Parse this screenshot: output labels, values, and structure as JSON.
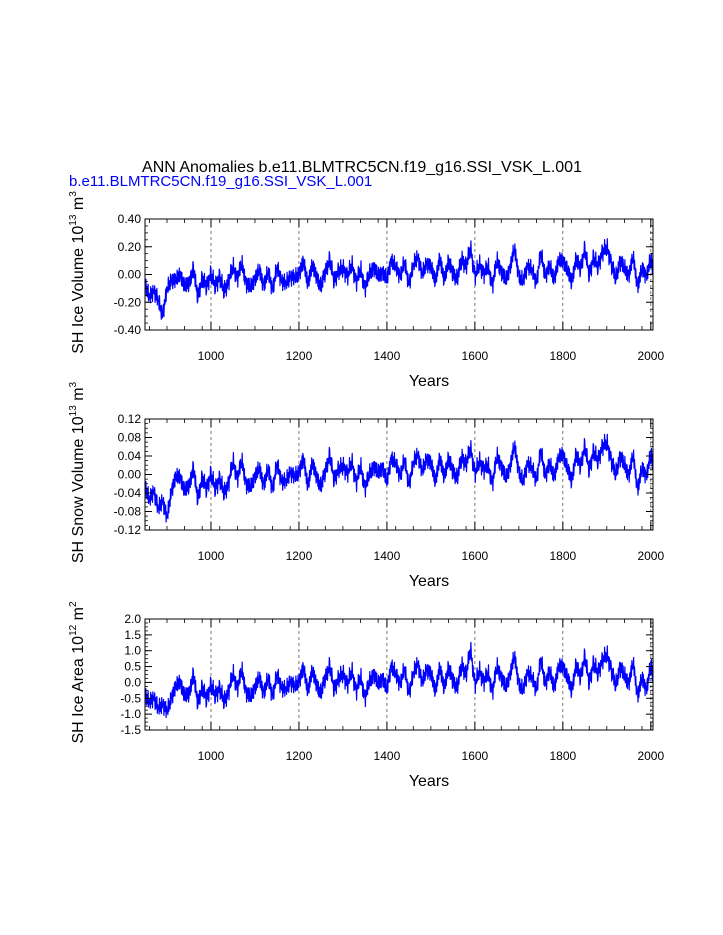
{
  "figure": {
    "title": "ANN Anomalies b.e11.BLMTRC5CN.f19_g16.SSI_VSK_L.001",
    "subtitle": "b.e11.BLMTRC5CN.f19_g16.SSI_VSK_L.001",
    "line_color": "#0000ff",
    "subtitle_color": "#0000ff"
  },
  "chart_data": [
    {
      "type": "line",
      "ylabel": {
        "text": "SH Ice Volume 10",
        "exp": "13",
        "unit": " m",
        "unit_exp": "3"
      },
      "xlabel": "Years",
      "xlim": [
        850,
        2005
      ],
      "ylim": [
        -0.4,
        0.4
      ],
      "xticks": [
        1000,
        1200,
        1400,
        1600,
        1800,
        2000
      ],
      "xtick_labels": [
        "1000",
        "1200",
        "1400",
        "1600",
        "1800",
        "2000"
      ],
      "yticks": [
        -0.4,
        -0.2,
        0.0,
        0.2,
        0.4
      ],
      "ytick_labels": [
        "-0.40",
        "-0.20",
        "0.00",
        "0.20",
        "0.40"
      ],
      "series": [
        {
          "x": [
            850,
            860,
            870,
            880,
            890,
            900,
            910,
            920,
            930,
            940,
            950,
            960,
            970,
            980,
            990,
            1000,
            1010,
            1020,
            1030,
            1040,
            1050,
            1060,
            1070,
            1080,
            1090,
            1100,
            1110,
            1120,
            1130,
            1140,
            1150,
            1160,
            1170,
            1180,
            1190,
            1200,
            1210,
            1220,
            1230,
            1240,
            1250,
            1260,
            1270,
            1280,
            1290,
            1300,
            1310,
            1320,
            1330,
            1340,
            1350,
            1360,
            1370,
            1380,
            1390,
            1400,
            1410,
            1420,
            1430,
            1440,
            1450,
            1460,
            1470,
            1480,
            1490,
            1500,
            1510,
            1520,
            1530,
            1540,
            1550,
            1560,
            1570,
            1580,
            1590,
            1600,
            1610,
            1620,
            1630,
            1640,
            1650,
            1660,
            1670,
            1680,
            1690,
            1700,
            1710,
            1720,
            1730,
            1740,
            1750,
            1760,
            1770,
            1780,
            1790,
            1800,
            1810,
            1820,
            1830,
            1840,
            1850,
            1860,
            1870,
            1880,
            1890,
            1900,
            1910,
            1920,
            1930,
            1940,
            1950,
            1960,
            1970,
            1980,
            1990,
            2000,
            2005
          ],
          "values": [
            -0.05,
            -0.18,
            -0.1,
            -0.2,
            -0.28,
            -0.12,
            -0.02,
            -0.06,
            0.02,
            -0.1,
            -0.05,
            0.03,
            -0.15,
            -0.04,
            -0.08,
            0.0,
            -0.08,
            -0.02,
            -0.12,
            -0.05,
            0.06,
            -0.03,
            0.08,
            -0.06,
            -0.1,
            -0.02,
            0.02,
            -0.07,
            0.01,
            -0.1,
            0.04,
            -0.03,
            -0.08,
            0.0,
            -0.04,
            0.02,
            0.08,
            -0.05,
            0.05,
            0.0,
            -0.1,
            0.03,
            0.1,
            -0.04,
            0.02,
            0.05,
            -0.02,
            0.08,
            -0.06,
            0.04,
            -0.1,
            0.0,
            0.06,
            -0.02,
            0.03,
            -0.05,
            0.12,
            0.04,
            0.0,
            0.08,
            -0.06,
            0.05,
            0.15,
            -0.02,
            0.1,
            0.04,
            -0.03,
            0.1,
            -0.02,
            0.08,
            0.02,
            -0.04,
            0.12,
            0.05,
            0.2,
            -0.02,
            0.08,
            0.0,
            0.06,
            -0.08,
            0.1,
            0.03,
            -0.05,
            0.06,
            0.18,
            0.0,
            -0.06,
            0.08,
            0.02,
            -0.05,
            0.15,
            0.0,
            0.05,
            -0.02,
            0.08,
            0.12,
            0.02,
            -0.04,
            0.1,
            0.05,
            0.18,
            0.0,
            0.12,
            0.06,
            0.16,
            0.2,
            0.08,
            -0.03,
            0.1,
            0.04,
            0.0,
            0.12,
            -0.08,
            0.03,
            0.0,
            0.1,
            0.06
          ]
        }
      ]
    },
    {
      "type": "line",
      "ylabel": {
        "text": "SH Snow Volume 10",
        "exp": "13",
        "unit": " m",
        "unit_exp": "3"
      },
      "xlabel": "Years",
      "xlim": [
        850,
        2005
      ],
      "ylim": [
        -0.12,
        0.12
      ],
      "xticks": [
        1000,
        1200,
        1400,
        1600,
        1800,
        2000
      ],
      "xtick_labels": [
        "1000",
        "1200",
        "1400",
        "1600",
        "1800",
        "2000"
      ],
      "yticks": [
        -0.12,
        -0.08,
        -0.04,
        0.0,
        0.04,
        0.08,
        0.12
      ],
      "ytick_labels": [
        "-0.12",
        "-0.08",
        "-0.04",
        "0.00",
        "0.04",
        "0.08",
        "0.12"
      ],
      "series": [
        {
          "x": [
            850,
            860,
            870,
            880,
            890,
            900,
            910,
            920,
            930,
            940,
            950,
            960,
            970,
            980,
            990,
            1000,
            1010,
            1020,
            1030,
            1040,
            1050,
            1060,
            1070,
            1080,
            1090,
            1100,
            1110,
            1120,
            1130,
            1140,
            1150,
            1160,
            1170,
            1180,
            1190,
            1200,
            1210,
            1220,
            1230,
            1240,
            1250,
            1260,
            1270,
            1280,
            1290,
            1300,
            1310,
            1320,
            1330,
            1340,
            1350,
            1360,
            1370,
            1380,
            1390,
            1400,
            1410,
            1420,
            1430,
            1440,
            1450,
            1460,
            1470,
            1480,
            1490,
            1500,
            1510,
            1520,
            1530,
            1540,
            1550,
            1560,
            1570,
            1580,
            1590,
            1600,
            1610,
            1620,
            1630,
            1640,
            1650,
            1660,
            1670,
            1680,
            1690,
            1700,
            1710,
            1720,
            1730,
            1740,
            1750,
            1760,
            1770,
            1780,
            1790,
            1800,
            1810,
            1820,
            1830,
            1840,
            1850,
            1860,
            1870,
            1880,
            1890,
            1900,
            1910,
            1920,
            1930,
            1940,
            1950,
            1960,
            1970,
            1980,
            1990,
            2000,
            2005
          ],
          "values": [
            -0.02,
            -0.06,
            -0.03,
            -0.08,
            -0.05,
            -0.1,
            -0.03,
            -0.01,
            0.0,
            -0.04,
            -0.02,
            0.01,
            -0.05,
            -0.01,
            -0.03,
            0.0,
            -0.03,
            -0.01,
            -0.04,
            -0.02,
            0.03,
            -0.01,
            0.03,
            -0.02,
            -0.03,
            0.0,
            0.01,
            -0.02,
            0.01,
            -0.03,
            0.02,
            -0.01,
            -0.02,
            0.01,
            -0.01,
            0.01,
            0.03,
            -0.02,
            0.02,
            0.0,
            -0.03,
            0.01,
            0.04,
            -0.01,
            0.01,
            0.02,
            0.0,
            0.03,
            -0.02,
            0.02,
            -0.03,
            0.0,
            0.02,
            0.0,
            0.02,
            -0.02,
            0.04,
            0.02,
            0.0,
            0.03,
            -0.02,
            0.02,
            0.05,
            0.0,
            0.04,
            0.02,
            -0.01,
            0.03,
            0.0,
            0.03,
            0.01,
            -0.01,
            0.04,
            0.02,
            0.06,
            0.0,
            0.03,
            0.01,
            0.02,
            -0.02,
            0.04,
            0.02,
            -0.01,
            0.02,
            0.06,
            0.01,
            -0.02,
            0.03,
            0.01,
            -0.01,
            0.05,
            0.0,
            0.02,
            0.0,
            0.03,
            0.05,
            0.01,
            -0.01,
            0.04,
            0.02,
            0.06,
            0.01,
            0.05,
            0.03,
            0.06,
            0.07,
            0.03,
            0.0,
            0.04,
            0.02,
            0.0,
            0.04,
            -0.03,
            0.01,
            0.0,
            0.04,
            0.03
          ]
        }
      ]
    },
    {
      "type": "line",
      "ylabel": {
        "text": "SH Ice Area 10",
        "exp": "12",
        "unit": " m",
        "unit_exp": "2"
      },
      "xlabel": "Years",
      "xlim": [
        850,
        2005
      ],
      "ylim": [
        -1.5,
        2.0
      ],
      "xticks": [
        1000,
        1200,
        1400,
        1600,
        1800,
        2000
      ],
      "xtick_labels": [
        "1000",
        "1200",
        "1400",
        "1600",
        "1800",
        "2000"
      ],
      "yticks": [
        -1.5,
        -1.0,
        -0.5,
        0.0,
        0.5,
        1.0,
        1.5,
        2.0
      ],
      "ytick_labels": [
        "-1.5",
        "-1.0",
        "-0.5",
        "0.0",
        "0.5",
        "1.0",
        "1.5",
        "2.0"
      ],
      "series": [
        {
          "x": [
            850,
            860,
            870,
            880,
            890,
            900,
            910,
            920,
            930,
            940,
            950,
            960,
            970,
            980,
            990,
            1000,
            1010,
            1020,
            1030,
            1040,
            1050,
            1060,
            1070,
            1080,
            1090,
            1100,
            1110,
            1120,
            1130,
            1140,
            1150,
            1160,
            1170,
            1180,
            1190,
            1200,
            1210,
            1220,
            1230,
            1240,
            1250,
            1260,
            1270,
            1280,
            1290,
            1300,
            1310,
            1320,
            1330,
            1340,
            1350,
            1360,
            1370,
            1380,
            1390,
            1400,
            1410,
            1420,
            1430,
            1440,
            1450,
            1460,
            1470,
            1480,
            1490,
            1500,
            1510,
            1520,
            1530,
            1540,
            1550,
            1560,
            1570,
            1580,
            1590,
            1600,
            1610,
            1620,
            1630,
            1640,
            1650,
            1660,
            1670,
            1680,
            1690,
            1700,
            1710,
            1720,
            1730,
            1740,
            1750,
            1760,
            1770,
            1780,
            1790,
            1800,
            1810,
            1820,
            1830,
            1840,
            1850,
            1860,
            1870,
            1880,
            1890,
            1900,
            1910,
            1920,
            1930,
            1940,
            1950,
            1960,
            1970,
            1980,
            1990,
            2000,
            2005
          ],
          "values": [
            -0.3,
            -0.7,
            -0.4,
            -0.9,
            -0.6,
            -1.0,
            -0.4,
            -0.2,
            0.1,
            -0.5,
            -0.3,
            0.2,
            -0.6,
            -0.2,
            -0.5,
            -0.1,
            -0.4,
            -0.2,
            -0.6,
            -0.3,
            0.3,
            -0.2,
            0.4,
            -0.3,
            -0.5,
            -0.1,
            0.1,
            -0.3,
            0.1,
            -0.4,
            0.2,
            -0.1,
            -0.3,
            0.1,
            -0.2,
            0.1,
            0.4,
            -0.2,
            0.3,
            0.0,
            -0.4,
            0.2,
            0.5,
            -0.2,
            0.1,
            0.3,
            -0.1,
            0.4,
            -0.3,
            0.2,
            -0.5,
            0.0,
            0.3,
            -0.1,
            0.2,
            -0.3,
            0.6,
            0.2,
            0.0,
            0.4,
            -0.3,
            0.2,
            0.7,
            -0.1,
            0.5,
            0.2,
            -0.2,
            0.4,
            -0.1,
            0.4,
            0.1,
            -0.2,
            0.6,
            0.2,
            1.1,
            -0.1,
            0.4,
            0.0,
            0.3,
            -0.3,
            0.5,
            0.2,
            -0.2,
            0.3,
            0.8,
            0.0,
            -0.3,
            0.4,
            0.1,
            -0.2,
            0.7,
            0.0,
            0.3,
            -0.1,
            0.4,
            0.6,
            0.1,
            -0.2,
            0.5,
            0.2,
            0.8,
            0.0,
            0.6,
            0.3,
            0.7,
            0.9,
            0.4,
            -0.1,
            0.5,
            0.2,
            0.0,
            0.6,
            -0.4,
            0.1,
            -0.2,
            0.5,
            0.3
          ]
        }
      ]
    }
  ]
}
